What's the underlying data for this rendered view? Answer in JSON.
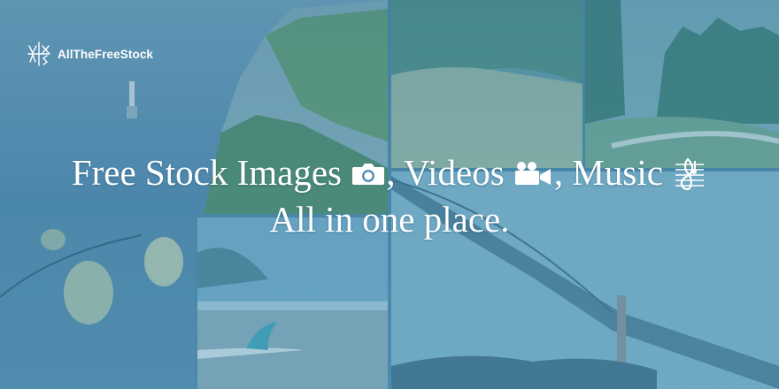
{
  "brand": {
    "name": "AllTheFreeStock",
    "logo_icon": "atfs-monogram-icon"
  },
  "headline": {
    "line1_part1": "Free Stock Images",
    "line1_part2": ", Videos",
    "line1_part3": ", Music",
    "line2": "All in one place."
  },
  "icons": {
    "images": "camera-icon",
    "videos": "video-camera-icon",
    "music": "music-sheet-icon"
  },
  "colors": {
    "overlay": "#3f86b0",
    "text": "#ffffff"
  }
}
